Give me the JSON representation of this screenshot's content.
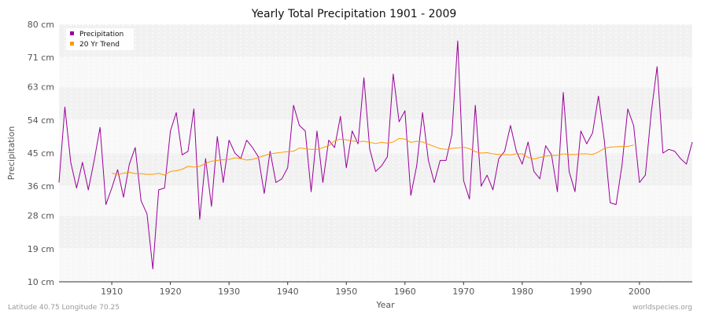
{
  "chart_data": {
    "type": "line",
    "title": "Yearly Total Precipitation 1901 - 2009",
    "xlabel": "Year",
    "ylabel": "Precipitation",
    "xlim": [
      1901,
      2009
    ],
    "ylim": [
      10,
      80
    ],
    "yticks": [
      10,
      19,
      28,
      36,
      45,
      54,
      63,
      71,
      80
    ],
    "ytick_labels": [
      "10 cm",
      "19 cm",
      "28 cm",
      "36 cm",
      "45 cm",
      "54 cm",
      "63 cm",
      "71 cm",
      "80 cm"
    ],
    "xticks": [
      1910,
      1920,
      1930,
      1940,
      1950,
      1960,
      1970,
      1980,
      1990,
      2000
    ],
    "xtick_labels": [
      "1910",
      "1920",
      "1930",
      "1940",
      "1950",
      "1960",
      "1970",
      "1980",
      "1990",
      "2000"
    ],
    "legend_position": "top-left",
    "series": [
      {
        "name": "Precipitation",
        "color": "#990099",
        "x_start": 1901,
        "values": [
          37.0,
          57.5,
          42.5,
          35.5,
          42.5,
          35.0,
          43.0,
          52.0,
          31.0,
          35.5,
          40.5,
          33.0,
          42.0,
          46.5,
          32.0,
          28.5,
          13.5,
          35.0,
          35.5,
          51.0,
          56.0,
          44.5,
          45.5,
          57.0,
          27.0,
          43.5,
          30.5,
          49.5,
          37.0,
          48.5,
          45.0,
          43.5,
          48.5,
          46.5,
          44.0,
          34.0,
          45.5,
          37.0,
          38.0,
          41.0,
          58.0,
          52.5,
          51.0,
          34.5,
          51.0,
          37.0,
          48.5,
          46.5,
          55.0,
          41.0,
          51.0,
          47.5,
          65.5,
          46.0,
          40.0,
          41.5,
          44.0,
          66.5,
          53.5,
          56.5,
          33.5,
          41.5,
          56.0,
          43.0,
          37.0,
          43.0,
          43.0,
          50.0,
          75.5,
          37.5,
          32.5,
          58.0,
          36.0,
          39.0,
          35.0,
          43.5,
          45.5,
          52.5,
          45.5,
          42.0,
          48.0,
          40.0,
          38.0,
          47.0,
          44.5,
          34.5,
          61.5,
          40.0,
          34.5,
          51.0,
          47.5,
          50.5,
          60.5,
          48.5,
          31.5,
          31.0,
          41.5,
          57.0,
          52.5,
          37.0,
          39.0,
          56.0,
          68.5,
          45.0,
          46.0,
          45.5,
          43.5,
          42.0,
          48.0
        ]
      },
      {
        "name": "20 Yr Trend",
        "color": "#ff9900",
        "x_start": 1910,
        "values": [
          39.5,
          39.2,
          39.5,
          39.8,
          39.4,
          39.4,
          39.2,
          39.2,
          39.5,
          39.0,
          40.0,
          40.2,
          40.6,
          41.4,
          41.2,
          41.4,
          42.2,
          42.8,
          43.0,
          43.2,
          43.3,
          43.7,
          43.5,
          43.1,
          43.3,
          43.8,
          44.3,
          44.8,
          45.0,
          45.2,
          45.4,
          45.5,
          46.4,
          46.2,
          46.0,
          46.0,
          46.5,
          47.0,
          48.3,
          48.8,
          48.6,
          48.3,
          48.1,
          48.2,
          47.9,
          47.6,
          47.9,
          47.7,
          48.0,
          49.0,
          48.8,
          47.9,
          48.2,
          48.0,
          47.4,
          46.8,
          46.2,
          46.0,
          46.3,
          46.4,
          46.6,
          46.2,
          45.4,
          45.0,
          45.1,
          44.8,
          44.6,
          44.6,
          44.5,
          44.8,
          44.8,
          43.8,
          43.4,
          43.8,
          44.2,
          44.3,
          44.4,
          44.8,
          44.6,
          44.6,
          44.8,
          44.8,
          44.6,
          45.3,
          46.3,
          46.6,
          46.7,
          46.8,
          46.8,
          47.2
        ]
      }
    ]
  },
  "footer": {
    "location": "Latitude 40.75 Longitude 70.25",
    "site": "worldspecies.org"
  }
}
